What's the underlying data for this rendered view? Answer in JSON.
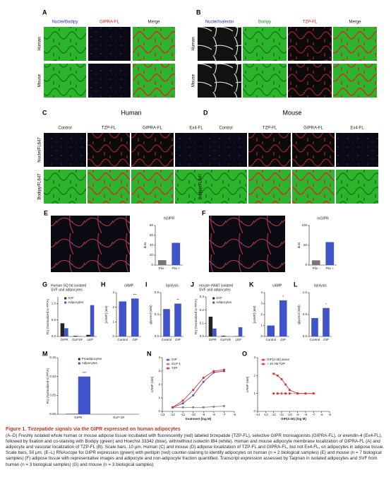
{
  "images": {
    "A": {
      "label": "A",
      "columns": [
        "Nuclei/Bodipy",
        "GIPRA-FL",
        "Merge"
      ],
      "rows": [
        "Human",
        "Mouse"
      ]
    },
    "B": {
      "label": "B",
      "columns": [
        "Nuclei/Isolectin",
        "Bodipy",
        "TZP-FL",
        "Merge"
      ],
      "rows": [
        "Human",
        "Mouse"
      ]
    },
    "C": {
      "label": "C",
      "title": "Human",
      "columns": [
        "Control",
        "TZP-FL",
        "GIPRA-FL",
        "Ex4-FL"
      ],
      "rows": [
        "Nuclei/FL647",
        "Bodipy/FL647"
      ]
    },
    "D": {
      "label": "D",
      "title": "Mouse",
      "columns": [
        "Control",
        "TZP-FL",
        "GIPRA-FL",
        "Ex4-FL"
      ],
      "rows": [
        "Nuclei/FL647",
        "Bodipy/FL647"
      ]
    },
    "E": {
      "label": "E"
    },
    "F": {
      "label": "F"
    }
  },
  "chart_data": [
    {
      "type": "bar",
      "title": "hGIPR",
      "ylabel": "dots",
      "categories": [
        "Plin -",
        "Plin +"
      ],
      "values": [
        10,
        45
      ],
      "colors": [
        "#777777",
        "#3e54c8"
      ],
      "ylim": [
        0,
        80
      ],
      "yticks": [
        0,
        20,
        40,
        60,
        80
      ]
    },
    {
      "type": "bar",
      "title": "mGIPR",
      "ylabel": "dots",
      "categories": [
        "Plin -",
        "Plin +"
      ],
      "values": [
        12,
        58
      ],
      "colors": [
        "#777777",
        "#3e54c8"
      ],
      "ylim": [
        0,
        100
      ],
      "yticks": [
        0,
        50,
        100
      ]
    },
    {
      "type": "bar",
      "label": "G",
      "title": [
        "Human SQ fat isolated",
        "SVF and adipocytes"
      ],
      "ylabel": "RQ (Normalized to PPIA)",
      "categories": [
        "GIPR",
        "GLP1R",
        "LEP"
      ],
      "series": [
        {
          "name": "SVF",
          "color": "#222222",
          "values": [
            0.4,
            0.02,
            0.05
          ]
        },
        {
          "name": "Adipocytes",
          "color": "#3e54c8",
          "values": [
            0.25,
            0.01,
            0.95
          ]
        }
      ],
      "ylim": [
        0,
        1.2
      ],
      "yticks": [
        {
          "value": 0,
          "label": "0.0"
        },
        {
          "value": 0.5,
          "label": "0.5"
        },
        {
          "value": 1,
          "label": "1.0"
        }
      ]
    },
    {
      "type": "bar",
      "label": "H",
      "title": "cAMP",
      "ylabel": "[cAMP] (nM)",
      "categories": [
        "Control",
        "GIP"
      ],
      "values": [
        2.4,
        2.6
      ],
      "colors": [
        "#3e54c8",
        "#3e54c8"
      ],
      "ylim": [
        0,
        3
      ],
      "yticks": [
        0,
        1,
        2,
        3
      ],
      "annotation": "***"
    },
    {
      "type": "bar",
      "label": "I",
      "title": "lipolysis",
      "ylabel": "glycerol (mM)",
      "categories": [
        "Control",
        "GIP"
      ],
      "values": [
        0.5,
        0.6
      ],
      "colors": [
        "#3e54c8",
        "#3e54c8"
      ],
      "ylim": [
        0,
        0.8
      ],
      "yticks": [
        {
          "value": 0,
          "label": "0.0"
        },
        0.4,
        0.8
      ],
      "annotation": "**"
    },
    {
      "type": "bar",
      "label": "J",
      "title": [
        "mouse eWAT isolated",
        "SVF and adipocytes"
      ],
      "ylabel": "RQ (Normalized to PPIA)",
      "categories": [
        "GIPR",
        "GLP1R",
        "LEP"
      ],
      "series": [
        {
          "name": "SVF",
          "color": "#222222",
          "values": [
            0.15,
            0.005,
            0.002
          ]
        },
        {
          "name": "Adipocytes",
          "color": "#3e54c8",
          "values": [
            0.06,
            0.001,
            0.07
          ]
        }
      ],
      "ylim": [
        0,
        0.3
      ],
      "yticks": [
        {
          "value": 0,
          "label": "0.0"
        },
        0.1,
        0.2,
        0.3
      ]
    },
    {
      "type": "bar",
      "label": "K",
      "title": "cAMP",
      "ylabel": "[cAMP] (nM)",
      "categories": [
        "Control",
        "GIP"
      ],
      "values": [
        1.0,
        3.3
      ],
      "colors": [
        "#3e54c8",
        "#3e54c8"
      ],
      "ylim": [
        0,
        4
      ],
      "yticks": [
        0,
        1,
        2,
        3,
        4
      ],
      "annotation": "*"
    },
    {
      "type": "bar",
      "label": "L",
      "title": "lipolysis",
      "ylabel": "glycerol (mM)",
      "categories": [
        "Control",
        "GIP"
      ],
      "values": [
        0.42,
        0.65
      ],
      "colors": [
        "#3e54c8",
        "#3e54c8"
      ],
      "ylim": [
        0,
        1
      ],
      "yticks": [
        {
          "value": 0,
          "label": "0.0"
        },
        0.5,
        {
          "value": 1,
          "label": "1.0"
        }
      ],
      "annotation": "*"
    },
    {
      "type": "bar",
      "label": "M",
      "ylabel": "RQ (Normalized to PPIA)",
      "categories": [
        "GIPR",
        "GLP-1R"
      ],
      "series": [
        {
          "name": "Preadipocytes",
          "color": "#222222",
          "values": [
            0.001,
            0
          ]
        },
        {
          "name": "Adipocytes",
          "color": "#3e54c8",
          "values": [
            0.1,
            0
          ]
        }
      ],
      "ylim": [
        0,
        0.15
      ],
      "yticks": [
        {
          "value": 0,
          "label": "0.00"
        },
        {
          "value": 0.05,
          "label": "0.05"
        },
        {
          "value": 0.1,
          "label": "0.10"
        },
        {
          "value": 0.15,
          "label": "0.15"
        }
      ],
      "annotation": "***"
    },
    {
      "type": "line",
      "label": "N",
      "ylabel": "cAMP (nM)",
      "xlabel": "treatment (log M)",
      "x": [
        -12,
        -11,
        -10,
        -9,
        -8,
        -7
      ],
      "series": [
        {
          "name": "GIP",
          "color": "#6b4aa0",
          "values": [
            0.3,
            0.6,
            1.2,
            2.2,
            2.9,
            3.0
          ]
        },
        {
          "name": "GLP-1",
          "color": "#888888",
          "values": [
            0.3,
            0.3,
            0.3,
            0.3,
            0.35,
            0.4
          ]
        },
        {
          "name": "TZP",
          "color": "#e03030",
          "values": [
            0.3,
            0.8,
            1.6,
            2.5,
            3.0,
            3.1
          ]
        }
      ],
      "xlim": [
        -13,
        -6
      ],
      "xticks": [
        -13,
        -12,
        -11,
        -10,
        -9,
        -8,
        -7,
        -6
      ],
      "ylim": [
        0,
        4
      ],
      "yticks": [
        0,
        1,
        2,
        3,
        4
      ]
    },
    {
      "type": "line",
      "label": "O",
      "ylabel": "cAMP (nM)",
      "xlabel": "GIP(3-30) (log M)",
      "x": [
        -12,
        -11.5,
        -11,
        -10.5,
        -10,
        -9,
        -8,
        -7
      ],
      "series": [
        {
          "name": "GIP(3-30) alone",
          "color": "#e03030",
          "values": [
            2.1,
            2.0,
            1.8,
            1.5,
            1.2,
            1.0,
            1.0,
            1.0
          ]
        },
        {
          "name": "+ 10 nM TZP",
          "color": "#e03030",
          "values": [
            1.0,
            1.0,
            1.0,
            1.0,
            1.0,
            1.0,
            1.0,
            1.0
          ]
        }
      ],
      "xlim": [
        -14,
        -5
      ],
      "xticks": [
        -14,
        -13,
        -12,
        -11,
        -10,
        -9,
        -8,
        -7,
        -6,
        -5
      ],
      "ylim": [
        0,
        3
      ],
      "yticks": [
        0,
        1,
        2,
        3
      ]
    }
  ],
  "caption": {
    "title": "Figure 1. Tirzepatide signals via the GIPR expressed on human adipocytes",
    "body": "(A–D) Freshly isolated whole human or mouse adipose tissue incubated with fluorescently (red) labeled tirzepatide (TZP-FL), selective GIPR monoagonists (GIPRA-FL), or exendin-4 (Ex4-FL), followed by fixation and co-staining with Bodipy (green) and Hoechst 33342 (blue), with/without isolectin IB4 (white). Human and mouse adipocyte membrane localization of GIPRA-FL (A) and adipocyte and vascular localization of TZP-FL (B). Scale bars, 10 μm. Human (C) and mouse (D) adipose localization of TZP-FL and GIPRA-FL, but not Ex4-FL, on adipocytes in adipose tissue. Scale bars, 50 μm. (E–L) RNAscope for GIPR expression (green) with perilipin (red) counter-staining to identify adipocytes on human (n = 2 biological samples) (E) and mouse (n = 7 biological samples) (F) adipose tissue with representative images and adipocyte and non-adipocyte fraction quantified. Transcript expression assessed by Taqman in isolated adipocytes and SVF from human (n = 3 biological samples) (G) and mouse (n = 3 biological samples)"
  }
}
